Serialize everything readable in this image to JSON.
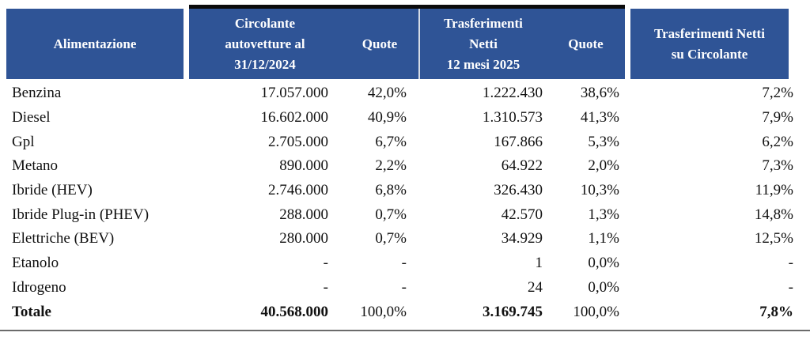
{
  "colors": {
    "header_bg": "#2F5496",
    "header_text": "#FFFFFF",
    "header_top_border": "#0B0B0B",
    "header_divider": "#D6DCE5",
    "bottom_rule": "#6B6B6B"
  },
  "table": {
    "header": {
      "col_fuel": "Alimentazione",
      "col_stock_lines": [
        "Circolante",
        "autovetture al",
        "31/12/2024"
      ],
      "col_quote1": "Quote",
      "col_transfers_lines": [
        "Trasferimenti",
        "Netti",
        "12 mesi 2025"
      ],
      "col_quote2": "Quote",
      "col_ratio_lines": [
        "Trasferimenti Netti",
        "su Circolante"
      ]
    },
    "rows": [
      {
        "label": "Benzina",
        "stock": "17.057.000",
        "stock_share": "42,0%",
        "transfers": "1.222.430",
        "transfers_share": "38,6%",
        "ratio": "7,2%"
      },
      {
        "label": "Diesel",
        "stock": "16.602.000",
        "stock_share": "40,9%",
        "transfers": "1.310.573",
        "transfers_share": "41,3%",
        "ratio": "7,9%"
      },
      {
        "label": "Gpl",
        "stock": "2.705.000",
        "stock_share": "6,7%",
        "transfers": "167.866",
        "transfers_share": "5,3%",
        "ratio": "6,2%"
      },
      {
        "label": "Metano",
        "stock": "890.000",
        "stock_share": "2,2%",
        "transfers": "64.922",
        "transfers_share": "2,0%",
        "ratio": "7,3%"
      },
      {
        "label": "Ibride (HEV)",
        "stock": "2.746.000",
        "stock_share": "6,8%",
        "transfers": "326.430",
        "transfers_share": "10,3%",
        "ratio": "11,9%"
      },
      {
        "label": "Ibride Plug-in (PHEV)",
        "stock": "288.000",
        "stock_share": "0,7%",
        "transfers": "42.570",
        "transfers_share": "1,3%",
        "ratio": "14,8%"
      },
      {
        "label": "Elettriche (BEV)",
        "stock": "280.000",
        "stock_share": "0,7%",
        "transfers": "34.929",
        "transfers_share": "1,1%",
        "ratio": "12,5%"
      },
      {
        "label": "Etanolo",
        "stock": "-",
        "stock_share": "-",
        "transfers": "1",
        "transfers_share": "0,0%",
        "ratio": "-"
      },
      {
        "label": "Idrogeno",
        "stock": "-",
        "stock_share": "-",
        "transfers": "24",
        "transfers_share": "0,0%",
        "ratio": "-"
      }
    ],
    "total": {
      "label": "Totale",
      "stock": "40.568.000",
      "stock_share": "100,0%",
      "transfers": "3.169.745",
      "transfers_share": "100,0%",
      "ratio": "7,8%"
    }
  }
}
